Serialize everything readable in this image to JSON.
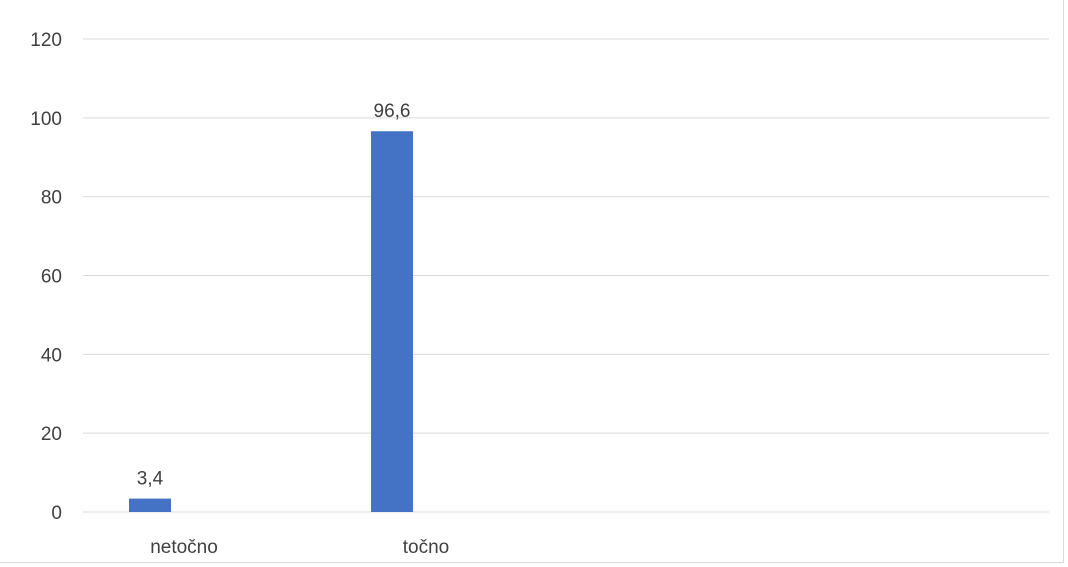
{
  "chart_data": {
    "type": "bar",
    "title": "",
    "xlabel": "",
    "ylabel": "",
    "categories": [
      "netočno",
      "točno"
    ],
    "values": [
      3.4,
      96.6
    ],
    "value_labels": [
      "3,4",
      "96,6"
    ],
    "ylim": [
      0,
      120
    ],
    "yticks": [
      0,
      20,
      40,
      60,
      80,
      100,
      120
    ],
    "ytick_labels": [
      "0",
      "20",
      "40",
      "60",
      "80",
      "100",
      "120"
    ],
    "grid": true,
    "legend": "none",
    "bar_color": "#4472c4",
    "grid_color": "#d9d9d9",
    "text_color": "#404040"
  }
}
